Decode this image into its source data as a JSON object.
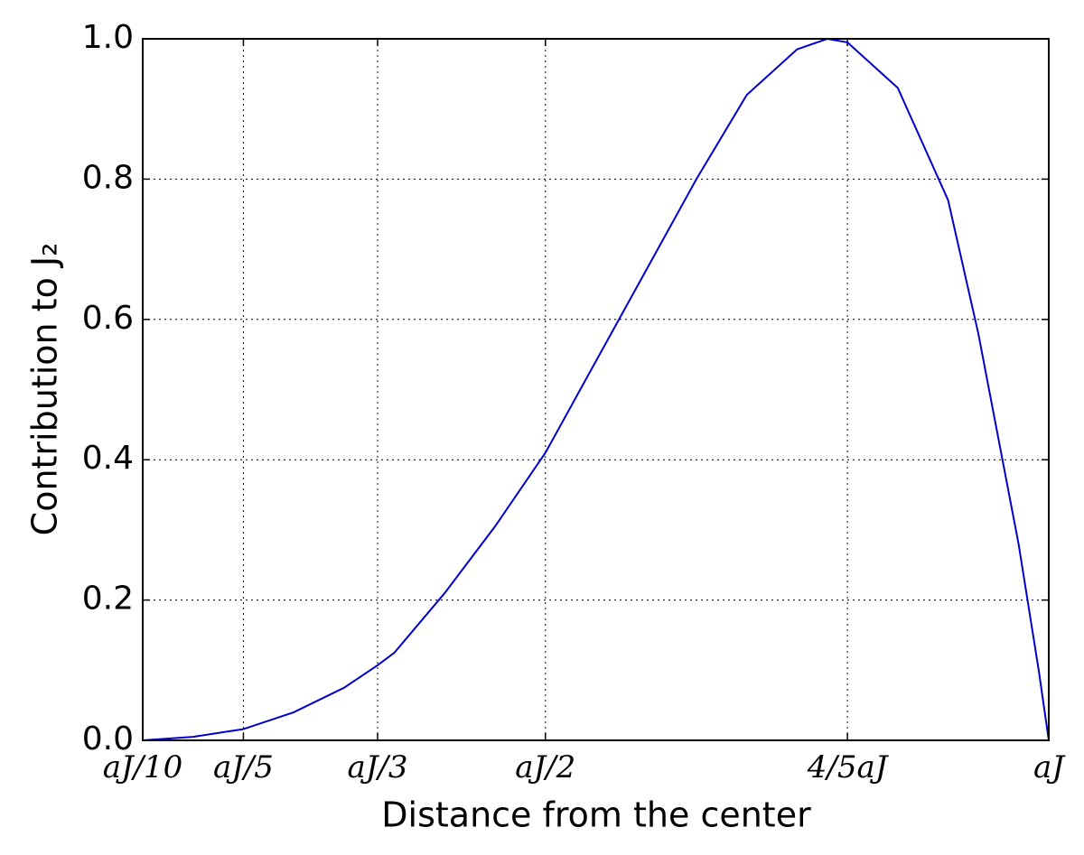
{
  "chart_data": {
    "type": "line",
    "xlabel": "Distance from the center",
    "ylabel": "Contribution to J₂",
    "x": [
      0.1,
      0.15,
      0.2,
      0.25,
      0.3,
      0.3333,
      0.35,
      0.4,
      0.45,
      0.5,
      0.55,
      0.6,
      0.65,
      0.7,
      0.75,
      0.78,
      0.8,
      0.85,
      0.9,
      0.93,
      0.95,
      0.97,
      0.99,
      1.0
    ],
    "series": [
      {
        "color": "#0000cc",
        "values": [
          0.0,
          0.005,
          0.016,
          0.04,
          0.075,
          0.107,
          0.125,
          0.21,
          0.305,
          0.41,
          0.54,
          0.67,
          0.8,
          0.92,
          0.985,
          1.0,
          0.995,
          0.93,
          0.77,
          0.58,
          0.43,
          0.28,
          0.1,
          0.0
        ]
      }
    ],
    "xlim": [
      0.1,
      1.0
    ],
    "xticks": [
      {
        "value": 0.1,
        "label": "aJ/10"
      },
      {
        "value": 0.2,
        "label": "aJ/5"
      },
      {
        "value": 0.3333,
        "label": "aJ/3"
      },
      {
        "value": 0.5,
        "label": "aJ/2"
      },
      {
        "value": 0.8,
        "label": "4/5aJ"
      },
      {
        "value": 1.0,
        "label": "aJ"
      }
    ],
    "ylim": [
      0.0,
      1.0
    ],
    "yticks": [
      {
        "value": 0.0,
        "label": "0.0"
      },
      {
        "value": 0.2,
        "label": "0.2"
      },
      {
        "value": 0.4,
        "label": "0.4"
      },
      {
        "value": 0.6,
        "label": "0.6"
      },
      {
        "value": 0.8,
        "label": "0.8"
      },
      {
        "value": 1.0,
        "label": "1.0"
      }
    ],
    "grid": true
  }
}
